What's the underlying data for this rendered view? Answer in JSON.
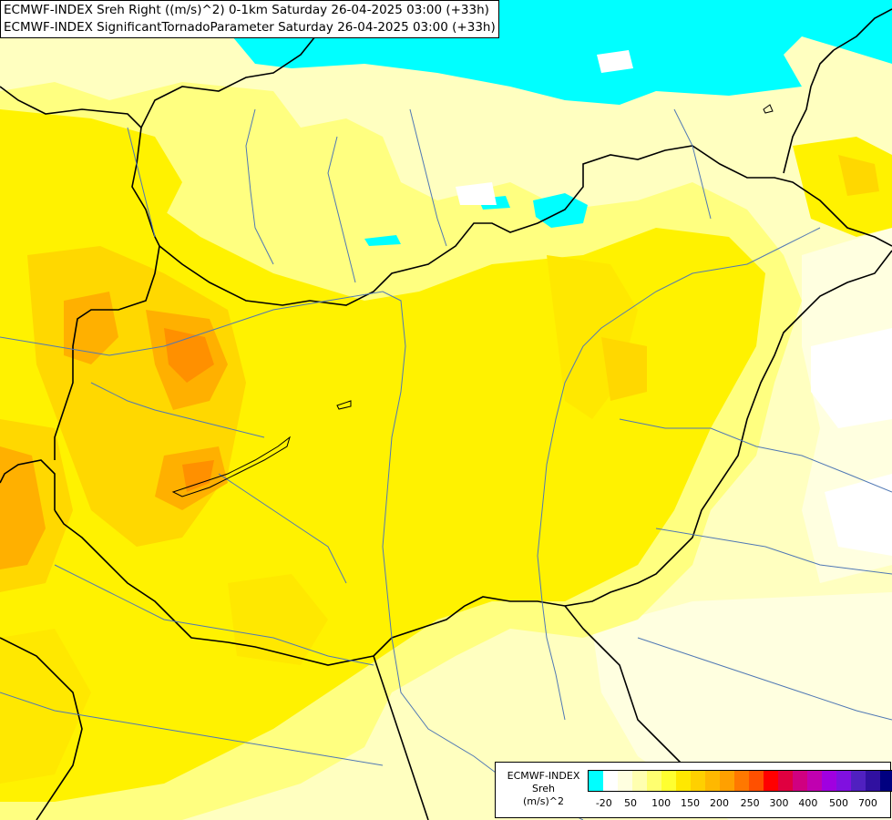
{
  "header": {
    "line1": "ECMWF-INDEX Sreh Right ((m/s)^2) 0-1km Saturday 26-04-2025 03:00 (+33h)",
    "line2": "ECMWF-INDEX SignificantTornadoParameter Saturday 26-04-2025 03:00 (+33h)"
  },
  "legend": {
    "title_line1": "ECMWF-INDEX",
    "title_line2": "Sreh",
    "title_line3": "(m/s)^2",
    "colors": [
      "#00ffff",
      "#ffffff",
      "#ffffe0",
      "#ffffb0",
      "#ffff70",
      "#ffff30",
      "#ffe800",
      "#ffd000",
      "#ffb800",
      "#ffa000",
      "#ff7800",
      "#ff5000",
      "#ff0000",
      "#e00040",
      "#d00080",
      "#c000b0",
      "#a000e0",
      "#8010e0",
      "#5020c0",
      "#3010a0",
      "#000080"
    ],
    "ticks": [
      {
        "label": "-20",
        "pos": 0.053
      },
      {
        "label": "50",
        "pos": 0.14
      },
      {
        "label": "100",
        "pos": 0.24
      },
      {
        "label": "150",
        "pos": 0.335
      },
      {
        "label": "200",
        "pos": 0.43
      },
      {
        "label": "250",
        "pos": 0.53
      },
      {
        "label": "300",
        "pos": 0.625
      },
      {
        "label": "400",
        "pos": 0.72
      },
      {
        "label": "500",
        "pos": 0.82
      },
      {
        "label": "700",
        "pos": 0.915
      }
    ]
  },
  "map_colors": {
    "base": "#ffffc0",
    "pale": "#ffffe0",
    "light_yellow": "#ffff80",
    "yellow": "#fff200",
    "gold": "#ffd800",
    "orange": "#ffb000",
    "dark_orange": "#ff9000",
    "negative": "#00ffff",
    "white": "#ffffff",
    "border": "#000000",
    "river": "#5078b4"
  }
}
